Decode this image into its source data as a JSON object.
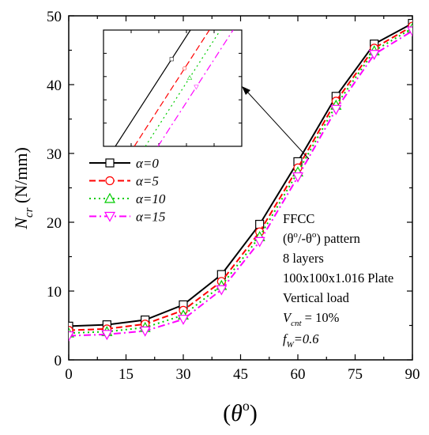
{
  "chart_data": {
    "type": "line",
    "x": [
      0,
      10,
      20,
      30,
      40,
      50,
      60,
      70,
      80,
      90
    ],
    "series": [
      {
        "name": "α=0",
        "color": "#000000",
        "marker": "square",
        "dash": "solid",
        "values": [
          4.9,
          5.1,
          5.8,
          8.0,
          12.4,
          19.7,
          28.8,
          38.3,
          45.9,
          48.9
        ]
      },
      {
        "name": "α=5",
        "color": "#ff0000",
        "marker": "circle",
        "dash": "dash",
        "values": [
          4.3,
          4.5,
          5.2,
          7.2,
          11.4,
          18.6,
          27.9,
          37.6,
          45.3,
          48.5
        ]
      },
      {
        "name": "α=10",
        "color": "#00cc00",
        "marker": "triangle-up",
        "dash": "dot",
        "values": [
          3.9,
          4.1,
          4.7,
          6.5,
          10.8,
          17.9,
          27.3,
          37.0,
          44.9,
          48.2
        ]
      },
      {
        "name": "α=15",
        "color": "#ff00ff",
        "marker": "triangle-down",
        "dash": "dash-dot",
        "values": [
          3.5,
          3.7,
          4.2,
          5.9,
          10.2,
          17.2,
          26.6,
          36.4,
          44.4,
          47.8
        ]
      }
    ],
    "xlabel": {
      "open": "(",
      "theta": "θ",
      "sup": "o",
      "close": ")"
    },
    "ylabel": {
      "main": "N",
      "sub": "cr",
      "unit": "  (N/mm)"
    },
    "xlim": [
      0,
      90
    ],
    "ylim": [
      0,
      50
    ],
    "xticks": [
      "0",
      "15",
      "30",
      "45",
      "60",
      "75",
      "90"
    ],
    "yticks": [
      "0",
      "10",
      "20",
      "30",
      "40",
      "50"
    ],
    "legend_position": "upper-left",
    "grid": false,
    "inset": "magnified view of curves near θ = 60°",
    "annotation": {
      "line1": "FFCC",
      "line2_open": "(θ",
      "line2_sup1": "o",
      "line2_mid": "/-θ",
      "line2_sup2": "o",
      "line2_close": ") pattern",
      "line3": "8 layers",
      "line4": "100x100x1.016 Plate",
      "line5": "Vertical load",
      "line6_v": "V",
      "line6_sub": "cnt",
      "line6_rest": " = 10%",
      "line7_f": "f",
      "line7_sub": "W",
      "line7_rest": "=0.6"
    }
  }
}
